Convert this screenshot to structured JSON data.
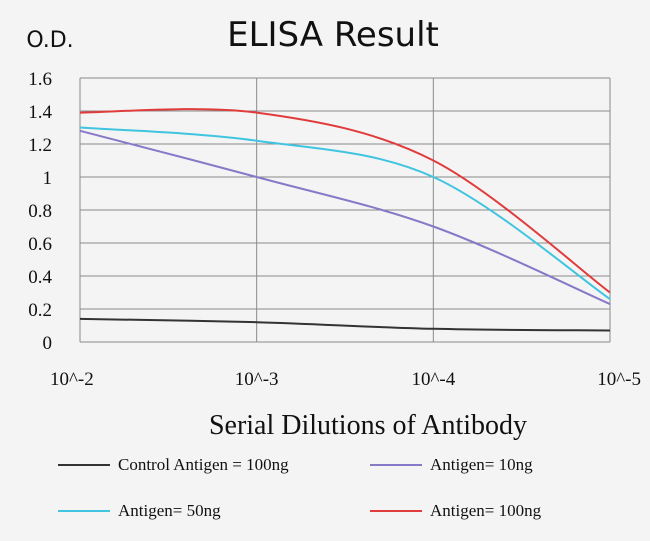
{
  "chart_data": {
    "type": "line",
    "title": "ELISA Result",
    "ylabel": "O.D.",
    "xlabel": "Serial Dilutions  of Antibody",
    "x": [
      "10^-2",
      "10^-3",
      "10^-4",
      "10^-5"
    ],
    "ylim": [
      0,
      1.6
    ],
    "yticks": [
      0,
      0.2,
      0.4,
      0.6,
      0.8,
      1,
      1.2,
      1.4,
      1.6
    ],
    "ytick_labels": [
      "0",
      "0.2",
      "0.4",
      "0.6",
      "0.8",
      "1",
      "1.2",
      "1.4",
      "1.6"
    ],
    "grid": true,
    "legend_position": "bottom",
    "series": [
      {
        "name": "Control Antigen = 100ng",
        "color": "#333333",
        "values": [
          0.14,
          0.12,
          0.08,
          0.07
        ]
      },
      {
        "name": "Antigen= 10ng",
        "color": "#8878c8",
        "values": [
          1.28,
          1.0,
          0.7,
          0.23
        ]
      },
      {
        "name": "Antigen= 50ng",
        "color": "#40c4e0",
        "values": [
          1.3,
          1.22,
          1.0,
          0.26
        ]
      },
      {
        "name": "Antigen= 100ng",
        "color": "#e03c3c",
        "values": [
          1.39,
          1.39,
          1.1,
          0.3
        ]
      }
    ]
  }
}
